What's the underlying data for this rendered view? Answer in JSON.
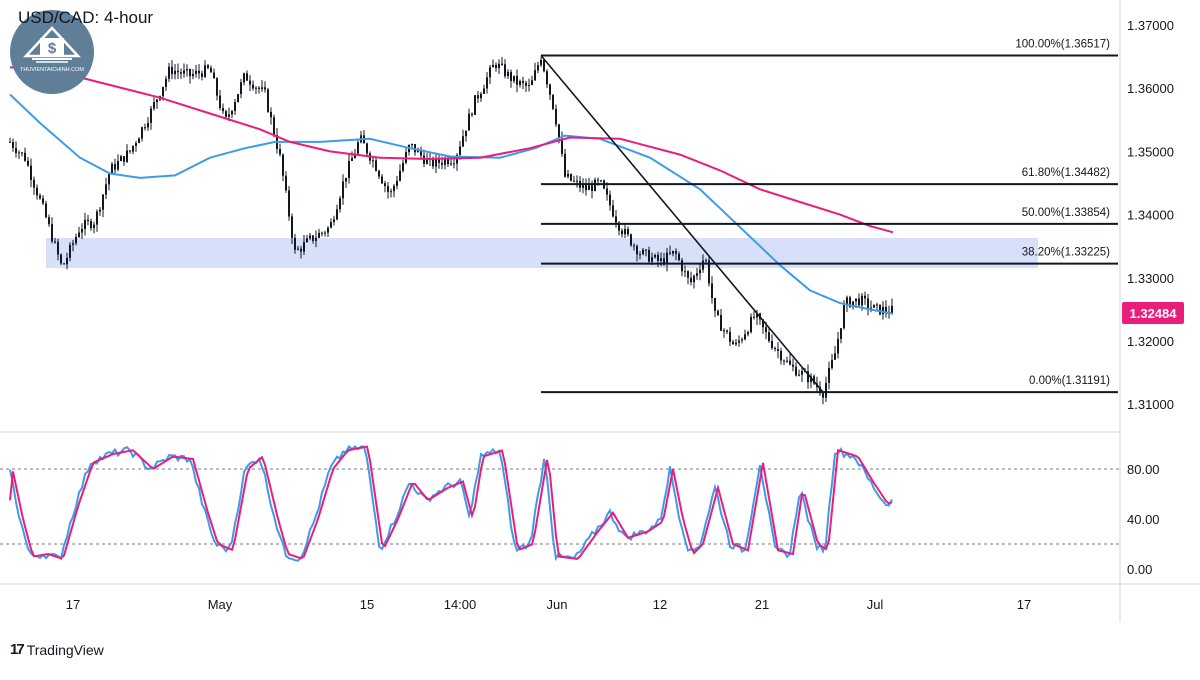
{
  "header": {
    "title": "USD/CAD: 4-hour"
  },
  "logo": {
    "text": "THUVIENTAICHINH.COM"
  },
  "footer": {
    "brand": "TradingView"
  },
  "colors": {
    "candle": "#131722",
    "ma_fast": "#3d9be9",
    "ma_slow": "#e91e7a",
    "zone": "#c9d4f7",
    "stoch_k": "#3d9be9",
    "stoch_d": "#e91e7a",
    "price_badge": "#e91e7a"
  },
  "price_axis": {
    "ticks": [
      "1.37000",
      "1.36000",
      "1.35000",
      "1.34000",
      "1.33000",
      "1.32000",
      "1.31000"
    ],
    "current_price": "1.32484"
  },
  "time_axis": {
    "ticks": [
      "17",
      "May",
      "15",
      "14:00",
      "Jun",
      "12",
      "21",
      "Jul",
      "17"
    ]
  },
  "chart_data": {
    "type": "candlestick",
    "title": "USD/CAD: 4-hour",
    "ylim": [
      1.3045,
      1.3705
    ],
    "fibonacci": [
      {
        "label": "100.00%(1.36517)",
        "value": 1.36517
      },
      {
        "label": "61.80%(1.34482)",
        "value": 1.34482
      },
      {
        "label": "50.00%(1.33854)",
        "value": 1.33854
      },
      {
        "label": "38.20%(1.33225)",
        "value": 1.33225
      },
      {
        "label": "0.00%(1.31191)",
        "value": 1.31191
      }
    ],
    "support_zone": [
      1.3322,
      1.3368
    ],
    "trendline": {
      "from": {
        "x": "Jun 1",
        "y": 1.36517
      },
      "to": {
        "x": "Jun 27",
        "y": 1.31191
      }
    },
    "current_price": 1.32484,
    "stochastic": {
      "ylim": [
        0,
        100
      ],
      "ticks": [
        "80.00",
        "40.00",
        "0.00"
      ],
      "levels": [
        80,
        20
      ]
    }
  }
}
